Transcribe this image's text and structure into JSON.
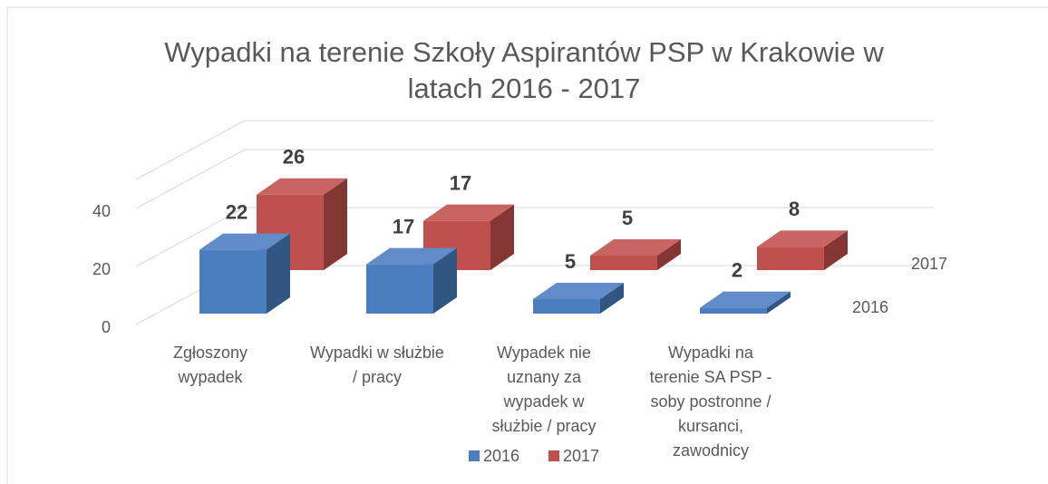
{
  "chart_data": {
    "type": "bar3d",
    "title": "Wypadki na terenie Szkoły Aspirantów PSP w Krakowie w latach 2016 - 2017",
    "categories": [
      "Zgłoszony wypadek",
      "Wypadki w służbie / pracy",
      "Wypadek nie uznany za wypadek w służbie / pracy",
      "Wypadki na terenie SA PSP - soby postronne / kursanci, zawodnicy"
    ],
    "series": [
      {
        "name": "2016",
        "color": "#4a7ebf",
        "values": [
          22,
          17,
          5,
          2
        ]
      },
      {
        "name": "2017",
        "color": "#c0504d",
        "values": [
          26,
          17,
          5,
          8
        ]
      }
    ],
    "ylim": [
      0,
      50
    ],
    "yticks": [
      0,
      20,
      40
    ],
    "grid": true,
    "legend": "bottom"
  }
}
